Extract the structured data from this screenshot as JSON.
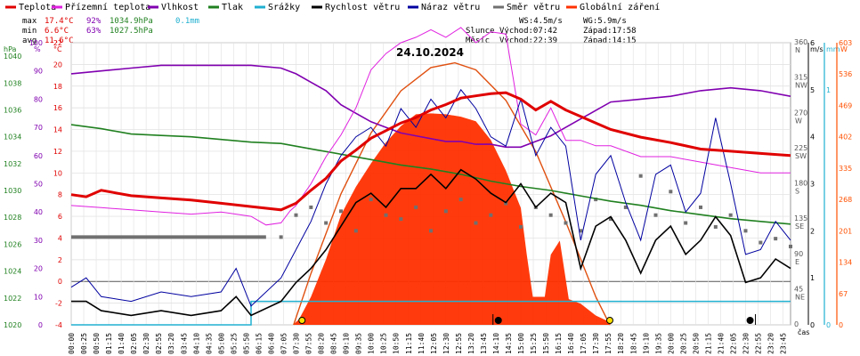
{
  "chart_data": {
    "type": "line",
    "title": "24.10.2024",
    "legend": [
      {
        "label": "Teplota",
        "color": "#e00000"
      },
      {
        "label": "Přízemní teplota",
        "color": "#e020e0"
      },
      {
        "label": "Vlhkost",
        "color": "#8000b0"
      },
      {
        "label": "Tlak",
        "color": "#208020"
      },
      {
        "label": "Srážky",
        "color": "#20b0d0"
      },
      {
        "label": "Rychlost větru",
        "color": "#000000"
      },
      {
        "label": "Náraz větru",
        "color": "#0000a0"
      },
      {
        "label": "Směr větru",
        "color": "#707070"
      },
      {
        "label": "Globální záření",
        "color": "#ff3000"
      }
    ],
    "stats": {
      "max": {
        "label": "max",
        "temp": "17.4°C",
        "hum": "92%",
        "press": "1034.9hPa",
        "rain": "0.1mm"
      },
      "min": {
        "label": "min",
        "temp": "6.6°C",
        "hum": "63%",
        "press": "1027.5hPa"
      },
      "avg": {
        "label": "avg",
        "temp": "11.6°C"
      }
    },
    "wind_info": {
      "ws": "WS:4.5m/s",
      "wg": "WG:5.9m/s"
    },
    "sun_info": {
      "label": "Slunce",
      "rise": "Východ:07:42",
      "set": "Západ:17:58"
    },
    "moon_info": {
      "label": "Měsíc",
      "rise": "Východ:22:39",
      "set": "Západ:14:15"
    },
    "axes": {
      "hpa": {
        "unit": "hPa",
        "ticks": [
          "1040",
          "1038",
          "1036",
          "1034",
          "1032",
          "1030",
          "1028",
          "1026",
          "1024",
          "1022",
          "1020"
        ],
        "range": [
          1020,
          1041
        ]
      },
      "hum": {
        "unit": "%",
        "ticks": [
          "100",
          "90",
          "80",
          "70",
          "60",
          "50",
          "40",
          "30",
          "20",
          "10",
          "0"
        ],
        "range": [
          0,
          100
        ]
      },
      "temp": {
        "unit": "°C",
        "ticks": [
          "22",
          "20",
          "18",
          "16",
          "14",
          "12",
          "10",
          "8",
          "6",
          "4",
          "2",
          "0",
          "-2",
          "-4"
        ],
        "range": [
          -4,
          22
        ]
      },
      "dir": {
        "ticks": [
          "360",
          "315",
          "270",
          "225",
          "180",
          "135",
          "90",
          "45",
          "0"
        ],
        "labels": [
          "N",
          "NW",
          "W",
          "SW",
          "S",
          "SE",
          "E",
          "NE",
          ""
        ],
        "range": [
          0,
          360
        ]
      },
      "ms": {
        "unit": "m/s",
        "ticks": [
          "6",
          "5",
          "4",
          "3",
          "2",
          "1",
          "0"
        ],
        "range": [
          0,
          6
        ]
      },
      "mm": {
        "unit": "mm",
        "ticks": [
          "1",
          "0"
        ],
        "range": [
          0,
          1.2
        ]
      },
      "w": {
        "unit": "W",
        "ticks": [
          "603",
          "536",
          "469",
          "402",
          "335",
          "268",
          "201",
          "134",
          "67",
          "0"
        ],
        "range": [
          0,
          603
        ]
      },
      "x_unit": "čas",
      "x_ticks": [
        "00:00",
        "00:25",
        "00:50",
        "01:15",
        "01:40",
        "02:05",
        "02:30",
        "02:55",
        "03:20",
        "03:45",
        "04:10",
        "04:35",
        "05:00",
        "05:25",
        "05:50",
        "06:15",
        "06:40",
        "07:05",
        "07:30",
        "07:55",
        "08:20",
        "08:45",
        "09:10",
        "09:35",
        "10:00",
        "10:25",
        "10:50",
        "11:15",
        "11:40",
        "12:05",
        "12:30",
        "12:55",
        "13:20",
        "13:45",
        "14:10",
        "14:35",
        "15:00",
        "15:25",
        "15:50",
        "16:15",
        "16:40",
        "17:05",
        "17:30",
        "17:55",
        "18:20",
        "18:45",
        "19:10",
        "19:35",
        "20:00",
        "20:25",
        "20:50",
        "21:15",
        "21:40",
        "22:05",
        "22:30",
        "22:55",
        "23:20",
        "23:45"
      ]
    },
    "series": {
      "temperature_c": {
        "x_hours": [
          0,
          0.5,
          1,
          2,
          3,
          4,
          5,
          6,
          7,
          7.5,
          8,
          8.5,
          9,
          9.5,
          10,
          10.5,
          11,
          11.5,
          12,
          12.5,
          13,
          13.5,
          14,
          14.5,
          15,
          15.5,
          16,
          16.5,
          17,
          17.5,
          18,
          19,
          20,
          21,
          22,
          23,
          24
        ],
        "values": [
          8,
          7.8,
          8.4,
          7.9,
          7.7,
          7.5,
          7.2,
          6.9,
          6.6,
          7.2,
          8.4,
          9.5,
          11.1,
          12.1,
          13.2,
          13.9,
          14.6,
          15.1,
          15.8,
          16.3,
          16.9,
          17.1,
          17.3,
          17.4,
          16.8,
          15.8,
          16.6,
          15.8,
          15.2,
          14.6,
          14.0,
          13.3,
          12.8,
          12.2,
          12.0,
          11.8,
          11.6
        ]
      },
      "ground_temp_c": {
        "x_hours": [
          0,
          1,
          2,
          3,
          4,
          5,
          6,
          6.5,
          7,
          7.3,
          7.5,
          8,
          8.5,
          9,
          9.5,
          10,
          10.5,
          11,
          11.5,
          12,
          12.5,
          13,
          13.5,
          14,
          14.5,
          15,
          15.5,
          16,
          16.5,
          17,
          17.5,
          18,
          19,
          20,
          21,
          22,
          23,
          24
        ],
        "values": [
          7,
          6.8,
          6.6,
          6.4,
          6.2,
          6.4,
          6.0,
          5.2,
          5.4,
          6.5,
          7.0,
          9.0,
          11.5,
          13.5,
          16.0,
          19.5,
          21.0,
          22.0,
          22.5,
          23.2,
          22.5,
          23.4,
          22.0,
          23.0,
          22.8,
          14.5,
          13.5,
          16.0,
          13.0,
          13.0,
          12.5,
          12.5,
          11.5,
          11.5,
          11.0,
          10.5,
          10.0,
          10.0
        ]
      },
      "humidity_pct": {
        "x_hours": [
          0,
          1,
          2,
          3,
          4,
          5,
          6,
          7,
          7.5,
          8,
          8.5,
          9,
          9.5,
          10,
          10.5,
          11,
          11.5,
          12,
          12.5,
          13,
          13.5,
          14,
          14.5,
          15,
          15.5,
          16,
          16.5,
          17,
          17.5,
          18,
          19,
          20,
          21,
          22,
          23,
          24
        ],
        "values": [
          89,
          90,
          91,
          92,
          92,
          92,
          92,
          91,
          89,
          86,
          83,
          78,
          75,
          72,
          70,
          68,
          67,
          66,
          65,
          65,
          64,
          64,
          63,
          63,
          65,
          67,
          70,
          73,
          76,
          79,
          80,
          81,
          83,
          84,
          83,
          81
        ]
      },
      "pressure_hpa": {
        "x_hours": [
          0,
          1,
          2,
          3,
          4,
          5,
          6,
          7,
          8,
          9,
          10,
          11,
          12,
          13,
          14,
          15,
          16,
          17,
          18,
          19,
          20,
          21,
          22,
          23,
          24
        ],
        "values": [
          1034.9,
          1034.6,
          1034.2,
          1034.1,
          1034.0,
          1033.8,
          1033.6,
          1033.5,
          1033.1,
          1032.7,
          1032.3,
          1031.9,
          1031.6,
          1031.2,
          1030.7,
          1030.3,
          1030.0,
          1029.6,
          1029.2,
          1028.9,
          1028.5,
          1028.2,
          1027.9,
          1027.7,
          1027.5
        ]
      },
      "rain_mm": {
        "x_hours": [
          0,
          6.0,
          6.0,
          24
        ],
        "values": [
          0,
          0,
          0.1,
          0.1
        ]
      },
      "wind_speed_ms": {
        "x_hours": [
          0,
          0.5,
          1,
          2,
          3,
          4,
          5,
          5.5,
          6,
          7,
          7.5,
          8,
          8.5,
          9,
          9.5,
          10,
          10.5,
          11,
          11.5,
          12,
          12.5,
          13,
          13.5,
          14,
          14.5,
          15,
          15.5,
          16,
          16.5,
          17,
          17.5,
          18,
          18.5,
          19,
          19.5,
          20,
          20.5,
          21,
          21.5,
          22,
          22.5,
          23,
          23.5,
          24
        ],
        "values": [
          0.5,
          0.5,
          0.3,
          0.2,
          0.3,
          0.2,
          0.3,
          0.6,
          0.2,
          0.5,
          0.9,
          1.2,
          1.6,
          2.1,
          2.6,
          2.8,
          2.5,
          2.9,
          2.9,
          3.2,
          2.9,
          3.3,
          3.1,
          2.8,
          2.6,
          3.0,
          2.5,
          2.8,
          2.6,
          1.2,
          2.1,
          2.3,
          1.8,
          1.1,
          1.8,
          2.1,
          1.5,
          1.8,
          2.3,
          1.9,
          0.9,
          1.0,
          1.4,
          1.2
        ]
      },
      "wind_gust_ms": {
        "x_hours": [
          0,
          0.5,
          1,
          2,
          3,
          4,
          5,
          5.5,
          6,
          7,
          7.5,
          8,
          8.5,
          9,
          9.5,
          10,
          10.5,
          11,
          11.5,
          12,
          12.5,
          13,
          13.5,
          14,
          14.5,
          15,
          15.5,
          16,
          16.5,
          17,
          17.5,
          18,
          18.5,
          19,
          19.5,
          20,
          20.5,
          21,
          21.5,
          22,
          22.5,
          23,
          23.5,
          24
        ],
        "values": [
          0.8,
          1.0,
          0.6,
          0.5,
          0.7,
          0.6,
          0.7,
          1.2,
          0.4,
          1.0,
          1.6,
          2.2,
          3.0,
          3.6,
          4.0,
          4.2,
          3.8,
          4.6,
          4.2,
          4.8,
          4.4,
          5.0,
          4.6,
          4.0,
          3.8,
          4.8,
          3.6,
          4.2,
          3.8,
          1.8,
          3.2,
          3.6,
          2.6,
          1.8,
          3.2,
          3.4,
          2.4,
          2.8,
          4.4,
          3.0,
          1.5,
          1.6,
          2.2,
          1.8
        ]
      },
      "wind_dir_deg": {
        "x_hours": [
          0,
          1,
          2,
          3,
          4,
          5,
          6,
          7,
          7.5,
          8,
          8.5,
          9,
          9.5,
          10,
          10.5,
          11,
          11.5,
          12,
          12.5,
          13,
          13.5,
          14,
          14.5,
          15,
          15.5,
          16,
          16.5,
          17,
          17.5,
          18,
          18.5,
          19,
          19.5,
          20,
          20.5,
          21,
          21.5,
          22,
          22.5,
          23,
          23.5,
          24
        ],
        "values": [
          112,
          112,
          112,
          112,
          112,
          112,
          112,
          112,
          140,
          150,
          130,
          145,
          120,
          160,
          140,
          135,
          150,
          120,
          145,
          160,
          130,
          140,
          155,
          125,
          150,
          140,
          130,
          120,
          160,
          135,
          150,
          190,
          140,
          170,
          130,
          150,
          125,
          140,
          120,
          105,
          110,
          100
        ]
      },
      "radiation_wm2": {
        "x_hours": [
          0,
          7.4,
          7.6,
          8,
          8.5,
          9,
          9.5,
          10,
          10.5,
          11,
          11.5,
          12,
          12.5,
          13,
          13.5,
          14,
          14.5,
          15,
          15.2,
          15.4,
          15.8,
          16,
          16.3,
          16.6,
          17,
          17.5,
          17.9,
          18,
          24
        ],
        "values": [
          0,
          0,
          12,
          60,
          140,
          235,
          295,
          345,
          390,
          425,
          450,
          452,
          450,
          445,
          435,
          395,
          330,
          250,
          150,
          60,
          60,
          150,
          180,
          55,
          45,
          20,
          8,
          0,
          0
        ]
      },
      "radiation_theoretical_wm2": {
        "x_hours": [
          7.42,
          8,
          9,
          10,
          11,
          12,
          12.8,
          13.5,
          14.5,
          15.5,
          16.5,
          17.5,
          17.97
        ],
        "values": [
          0,
          110,
          280,
          410,
          500,
          550,
          560,
          545,
          480,
          370,
          220,
          60,
          0
        ]
      }
    },
    "markers": {
      "sunrise_h": 7.7,
      "sunset_h": 17.97,
      "moonset_h": 14.25,
      "moonrise_h": 22.65
    }
  }
}
